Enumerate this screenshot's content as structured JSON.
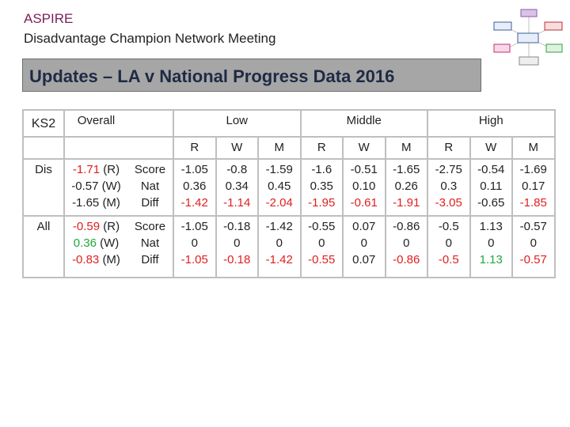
{
  "header": {
    "brand": "ASPIRE",
    "subtitle": "Disadvantage Champion Network Meeting",
    "banner": "Updates – LA v National Progress Data 2016"
  },
  "table": {
    "corner": "KS2",
    "overall": "Overall",
    "groups": [
      "Low",
      "Middle",
      "High"
    ],
    "subjects": [
      "R",
      "W",
      "M",
      "R",
      "W",
      "M",
      "R",
      "W",
      "M"
    ],
    "row_labels": [
      "Score",
      "Nat",
      "Diff"
    ],
    "rows": [
      {
        "name": "Dis",
        "overall": [
          {
            "value": "-1.71",
            "label": "(R)",
            "color": "#e02020"
          },
          {
            "value": "-0.57",
            "label": "(W)",
            "color": "#222222"
          },
          {
            "value": "-1.65",
            "label": "(M)",
            "color": "#222222"
          }
        ],
        "score": [
          "-1.05",
          "-0.8",
          "-1.59",
          "-1.6",
          "-0.51",
          "-1.65",
          "-2.75",
          "-0.54",
          "-1.69"
        ],
        "nat": [
          "0.36",
          "0.34",
          "0.45",
          "0.35",
          "0.10",
          "0.26",
          "0.3",
          "0.11",
          "0.17"
        ],
        "diff": [
          "-1.42",
          "-1.14",
          "-2.04",
          "-1.95",
          "-0.61",
          "-1.91",
          "-3.05",
          "-0.65",
          "-1.85"
        ],
        "diff_colors": [
          "#e02020",
          "#e02020",
          "#e02020",
          "#e02020",
          "#e02020",
          "#e02020",
          "#e02020",
          "#222222",
          "#e02020"
        ]
      },
      {
        "name": "All",
        "overall": [
          {
            "value": "-0.59",
            "label": "(R)",
            "color": "#e02020"
          },
          {
            "value": "0.36",
            "label": "(W)",
            "color": "#22a83a"
          },
          {
            "value": "-0.83",
            "label": "(M)",
            "color": "#e02020"
          }
        ],
        "score": [
          "-1.05",
          "-0.18",
          "-1.42",
          "-0.55",
          "0.07",
          "-0.86",
          "-0.5",
          "1.13",
          "-0.57"
        ],
        "nat": [
          "0",
          "0",
          "0",
          "0",
          "0",
          "0",
          "0",
          "0",
          "0"
        ],
        "diff": [
          "-1.05",
          "-0.18",
          "-1.42",
          "-0.55",
          "0.07",
          "-0.86",
          "-0.5",
          "1.13",
          "-0.57"
        ],
        "diff_colors": [
          "#e02020",
          "#e02020",
          "#e02020",
          "#e02020",
          "#222222",
          "#e02020",
          "#e02020",
          "#22a83a",
          "#e02020"
        ]
      }
    ]
  }
}
